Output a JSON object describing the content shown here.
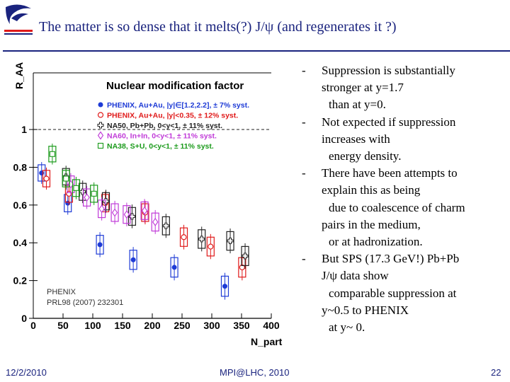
{
  "slide": {
    "title": "The matter is so dense that it melts(?) J/ψ (and regenerates it ?)",
    "footer_date": "12/2/2010",
    "footer_center": "MPI@LHC, 2010",
    "page_number": "22"
  },
  "bullets": [
    {
      "dash": "-",
      "lines": [
        "Suppression is substantially",
        "stronger at y=1.7",
        "than at y=0."
      ]
    },
    {
      "dash": "-",
      "lines": [
        "Not expected if suppression",
        "increases with",
        "energy density."
      ]
    },
    {
      "dash": "-",
      "lines": [
        "There have been attempts to",
        "explain this as being",
        "due to coalescence of  charm",
        "pairs in the medium,",
        "or at hadronization."
      ]
    },
    {
      "dash": "-",
      "lines": [
        "But SPS (17.3 GeV!) Pb+Pb",
        "J/ψ data show",
        "comparable suppression at",
        "y~0.5 to PHENIX",
        "at y~ 0."
      ]
    }
  ],
  "chart_data": {
    "type": "scatter",
    "title": "Nuclear modification factor",
    "xlabel": "N_part",
    "ylabel": "R_AA",
    "xlim": [
      0,
      400
    ],
    "ylim": [
      0,
      1.3
    ],
    "xticks": [
      "0",
      "50",
      "100",
      "150",
      "200",
      "250",
      "300",
      "350",
      "400"
    ],
    "yticks": [
      "0",
      "0.2",
      "0.4",
      "0.6",
      "0.8",
      "1"
    ],
    "annotation": [
      "PHENIX",
      "PRL98 (2007) 232301"
    ],
    "colors": {
      "phenix_fwd": "#1e3bd6",
      "phenix_mid": "#e01a1a",
      "na50": "#222222",
      "na60": "#c03ad8",
      "na38": "#1a9a1a"
    },
    "series": [
      {
        "name": "PHENIX, Au+Au, |y|∈[1.2,2.2], ± 7% syst.",
        "marker": "filled-circle",
        "color": "#1e3bd6",
        "points": [
          [
            14,
            0.77
          ],
          [
            58,
            0.61
          ],
          [
            112,
            0.39
          ],
          [
            168,
            0.31
          ],
          [
            237,
            0.27
          ],
          [
            322,
            0.17
          ]
        ]
      },
      {
        "name": "PHENIX, Au+Au, |y|<0.35, ± 12% syst.",
        "marker": "open-circle",
        "color": "#e01a1a",
        "points": [
          [
            22,
            0.74
          ],
          [
            60,
            0.66
          ],
          [
            121,
            0.61
          ],
          [
            188,
            0.56
          ],
          [
            253,
            0.43
          ],
          [
            298,
            0.38
          ],
          [
            351,
            0.27
          ]
        ]
      },
      {
        "name": "NA50, Pb+Pb, 0<y<1, ± 11% syst.",
        "marker": "open-cross",
        "color": "#222222",
        "points": [
          [
            55,
            0.75
          ],
          [
            83,
            0.67
          ],
          [
            122,
            0.62
          ],
          [
            166,
            0.54
          ],
          [
            223,
            0.49
          ],
          [
            283,
            0.42
          ],
          [
            331,
            0.41
          ],
          [
            356,
            0.33
          ]
        ]
      },
      {
        "name": "NA60, In+In, 0<y<1, ± 11% syst.",
        "marker": "open-diamond",
        "color": "#c03ad8",
        "points": [
          [
            63,
            0.71
          ],
          [
            90,
            0.64
          ],
          [
            115,
            0.58
          ],
          [
            137,
            0.56
          ],
          [
            157,
            0.55
          ],
          [
            187,
            0.57
          ],
          [
            205,
            0.51
          ]
        ]
      },
      {
        "name": "NA38, S+U, 0<y<1, ± 11% syst.",
        "marker": "open-square",
        "color": "#1a9a1a",
        "points": [
          [
            32,
            0.87
          ],
          [
            55,
            0.74
          ],
          [
            72,
            0.69
          ],
          [
            102,
            0.66
          ]
        ]
      }
    ]
  }
}
